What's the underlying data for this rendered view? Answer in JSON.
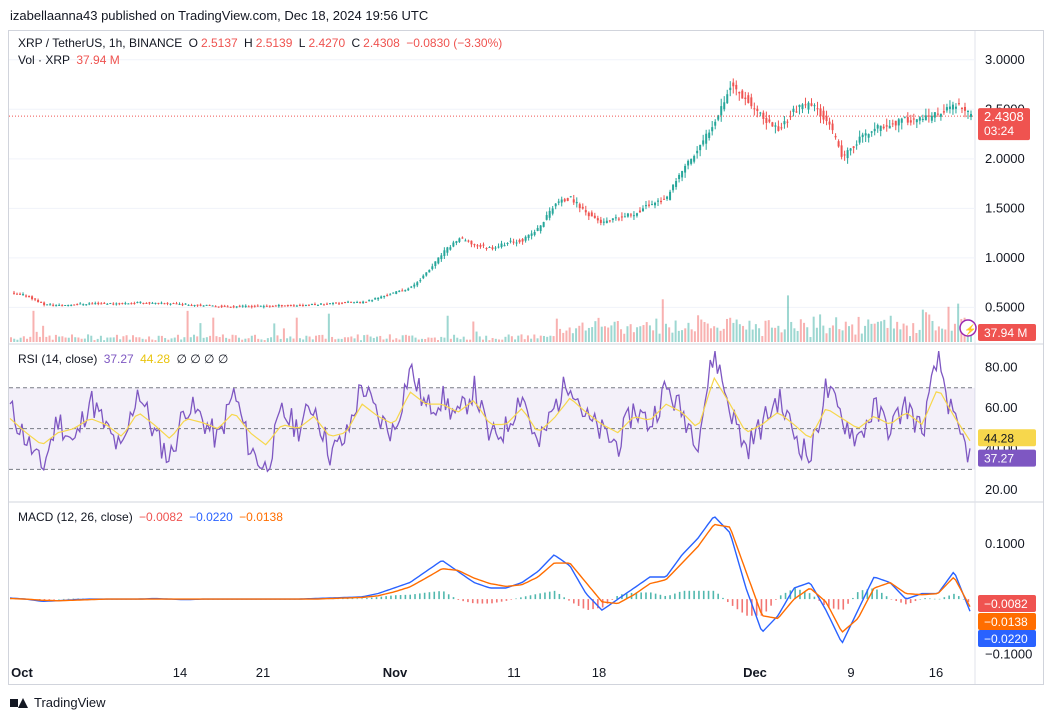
{
  "publisher_line": "izabellaanna43 published on TradingView.com, Dec 18, 2024 19:56 UTC",
  "brand": "TradingView",
  "colors": {
    "up": "#26a69a",
    "down": "#ef5350",
    "rsi": "#7e57c2",
    "rsi_ma": "#f7d74c",
    "macd": "#2962ff",
    "signal": "#ff6d00",
    "grid": "#f0f3fa",
    "text": "#131722"
  },
  "price_legend": {
    "symbol": "XRP / TetherUS, 1h, BINANCE",
    "o_label": "O",
    "o": "2.5137",
    "h_label": "H",
    "h": "2.5139",
    "l_label": "L",
    "l": "2.4270",
    "c_label": "C",
    "c": "2.4308",
    "change": "−0.0830 (−3.30%)",
    "vol_label": "Vol · XRP",
    "vol": "37.94 M"
  },
  "price_badges": {
    "last": "2.4308",
    "countdown": "03:24",
    "volume": "37.94 M"
  },
  "rsi_legend": {
    "label": "RSI (14, close)",
    "rsi": "37.27",
    "ma": "44.28",
    "extra": "∅ ∅ ∅ ∅"
  },
  "rsi_badges": {
    "ma": "44.28",
    "rsi": "37.27"
  },
  "macd_legend": {
    "label": "MACD (12, 26, close)",
    "hist": "−0.0082",
    "macd": "−0.0220",
    "signal": "−0.0138"
  },
  "macd_badges": {
    "hist": "−0.0082",
    "signal": "−0.0138",
    "macd": "−0.0220"
  },
  "chart_data": [
    {
      "type": "line",
      "title": "XRP / TetherUS, 1h, BINANCE",
      "y_ticks": [
        "3.0000",
        "2.5000",
        "2.0000",
        "1.5000",
        "1.0000",
        "0.5000"
      ],
      "ylim": [
        0.15,
        3.2
      ],
      "x_ticks": [
        "Oct",
        "14",
        "21",
        "Nov",
        "11",
        "18",
        "Dec",
        "9",
        "16"
      ],
      "series": [
        {
          "name": "XRP",
          "values": [
            0.64,
            0.62,
            0.53,
            0.52,
            0.53,
            0.54,
            0.54,
            0.54,
            0.55,
            0.54,
            0.54,
            0.53,
            0.52,
            0.51,
            0.51,
            0.51,
            0.51,
            0.52,
            0.52,
            0.53,
            0.54,
            0.55,
            0.55,
            0.6,
            0.65,
            0.7,
            0.85,
            1.05,
            1.2,
            1.13,
            1.1,
            1.15,
            1.18,
            1.3,
            1.55,
            1.6,
            1.45,
            1.35,
            1.4,
            1.45,
            1.55,
            1.6,
            1.9,
            2.1,
            2.4,
            2.75,
            2.6,
            2.4,
            2.3,
            2.5,
            2.55,
            2.4,
            2.0,
            2.2,
            2.3,
            2.35,
            2.4,
            2.4,
            2.45,
            2.55,
            2.43
          ]
        }
      ],
      "last_value": 2.4308
    },
    {
      "type": "line",
      "title": "RSI (14, close)",
      "y_ticks": [
        "80.00",
        "60.00",
        "40.00",
        "20.00"
      ],
      "ylim": [
        15,
        90
      ],
      "bands": [
        70,
        50,
        30
      ],
      "series": [
        {
          "name": "RSI",
          "values": [
            60,
            45,
            30,
            55,
            42,
            65,
            50,
            38,
            70,
            48,
            35,
            62,
            55,
            44,
            68,
            40,
            30,
            58,
            50,
            62,
            38,
            45,
            72,
            55,
            48,
            80,
            60,
            65,
            55,
            70,
            45,
            50,
            68,
            40,
            60,
            75,
            55,
            48,
            42,
            60,
            52,
            70,
            58,
            45,
            88,
            60,
            40,
            52,
            65,
            48,
            35,
            70,
            55,
            45,
            60,
            50,
            62,
            48,
            85,
            52,
            37
          ]
        },
        {
          "name": "MA",
          "values": [
            55,
            48,
            42,
            48,
            50,
            55,
            52,
            46,
            58,
            52,
            45,
            55,
            53,
            50,
            58,
            48,
            42,
            52,
            50,
            56,
            46,
            48,
            62,
            56,
            52,
            68,
            62,
            62,
            58,
            64,
            52,
            52,
            60,
            48,
            55,
            65,
            58,
            52,
            48,
            56,
            54,
            62,
            58,
            50,
            75,
            62,
            48,
            52,
            58,
            52,
            45,
            60,
            55,
            50,
            56,
            52,
            58,
            52,
            70,
            56,
            44
          ]
        }
      ],
      "last_values": {
        "rsi": 37.27,
        "ma": 44.28
      }
    },
    {
      "type": "line",
      "title": "MACD (12, 26, close)",
      "y_ticks": [
        "0.1000",
        "−0.1000"
      ],
      "ylim": [
        -0.11,
        0.17
      ],
      "series": [
        {
          "name": "MACD",
          "values": [
            0.002,
            0.0,
            -0.004,
            -0.003,
            -0.001,
            0.0,
            0.0,
            0.0,
            0.0,
            0.001,
            0.0,
            -0.001,
            0.0,
            0.0,
            0.0,
            0.0,
            0.0,
            0.0,
            0.0,
            0.001,
            0.002,
            0.003,
            0.004,
            0.01,
            0.02,
            0.03,
            0.05,
            0.07,
            0.05,
            0.03,
            0.02,
            0.02,
            0.03,
            0.05,
            0.08,
            0.06,
            0.01,
            -0.02,
            0.0,
            0.02,
            0.04,
            0.04,
            0.08,
            0.11,
            0.15,
            0.12,
            0.02,
            -0.06,
            -0.03,
            0.02,
            0.03,
            -0.02,
            -0.08,
            -0.02,
            0.04,
            0.03,
            0.0,
            0.01,
            0.01,
            0.05,
            -0.022
          ]
        },
        {
          "name": "Signal",
          "values": [
            0.001,
            0.0,
            -0.002,
            -0.003,
            -0.002,
            -0.001,
            0.0,
            0.0,
            0.0,
            0.0,
            0.0,
            0.0,
            0.0,
            0.0,
            0.0,
            0.0,
            0.0,
            0.0,
            0.0,
            0.0,
            0.001,
            0.002,
            0.003,
            0.006,
            0.013,
            0.022,
            0.038,
            0.055,
            0.052,
            0.038,
            0.028,
            0.023,
            0.026,
            0.04,
            0.065,
            0.065,
            0.03,
            -0.005,
            -0.008,
            0.008,
            0.028,
            0.035,
            0.065,
            0.095,
            0.135,
            0.13,
            0.05,
            -0.03,
            -0.035,
            0.0,
            0.02,
            -0.005,
            -0.06,
            -0.035,
            0.02,
            0.03,
            0.01,
            0.008,
            0.01,
            0.04,
            -0.0138
          ]
        }
      ],
      "last_values": {
        "hist": -0.0082,
        "macd": -0.022,
        "signal": -0.0138
      }
    }
  ]
}
